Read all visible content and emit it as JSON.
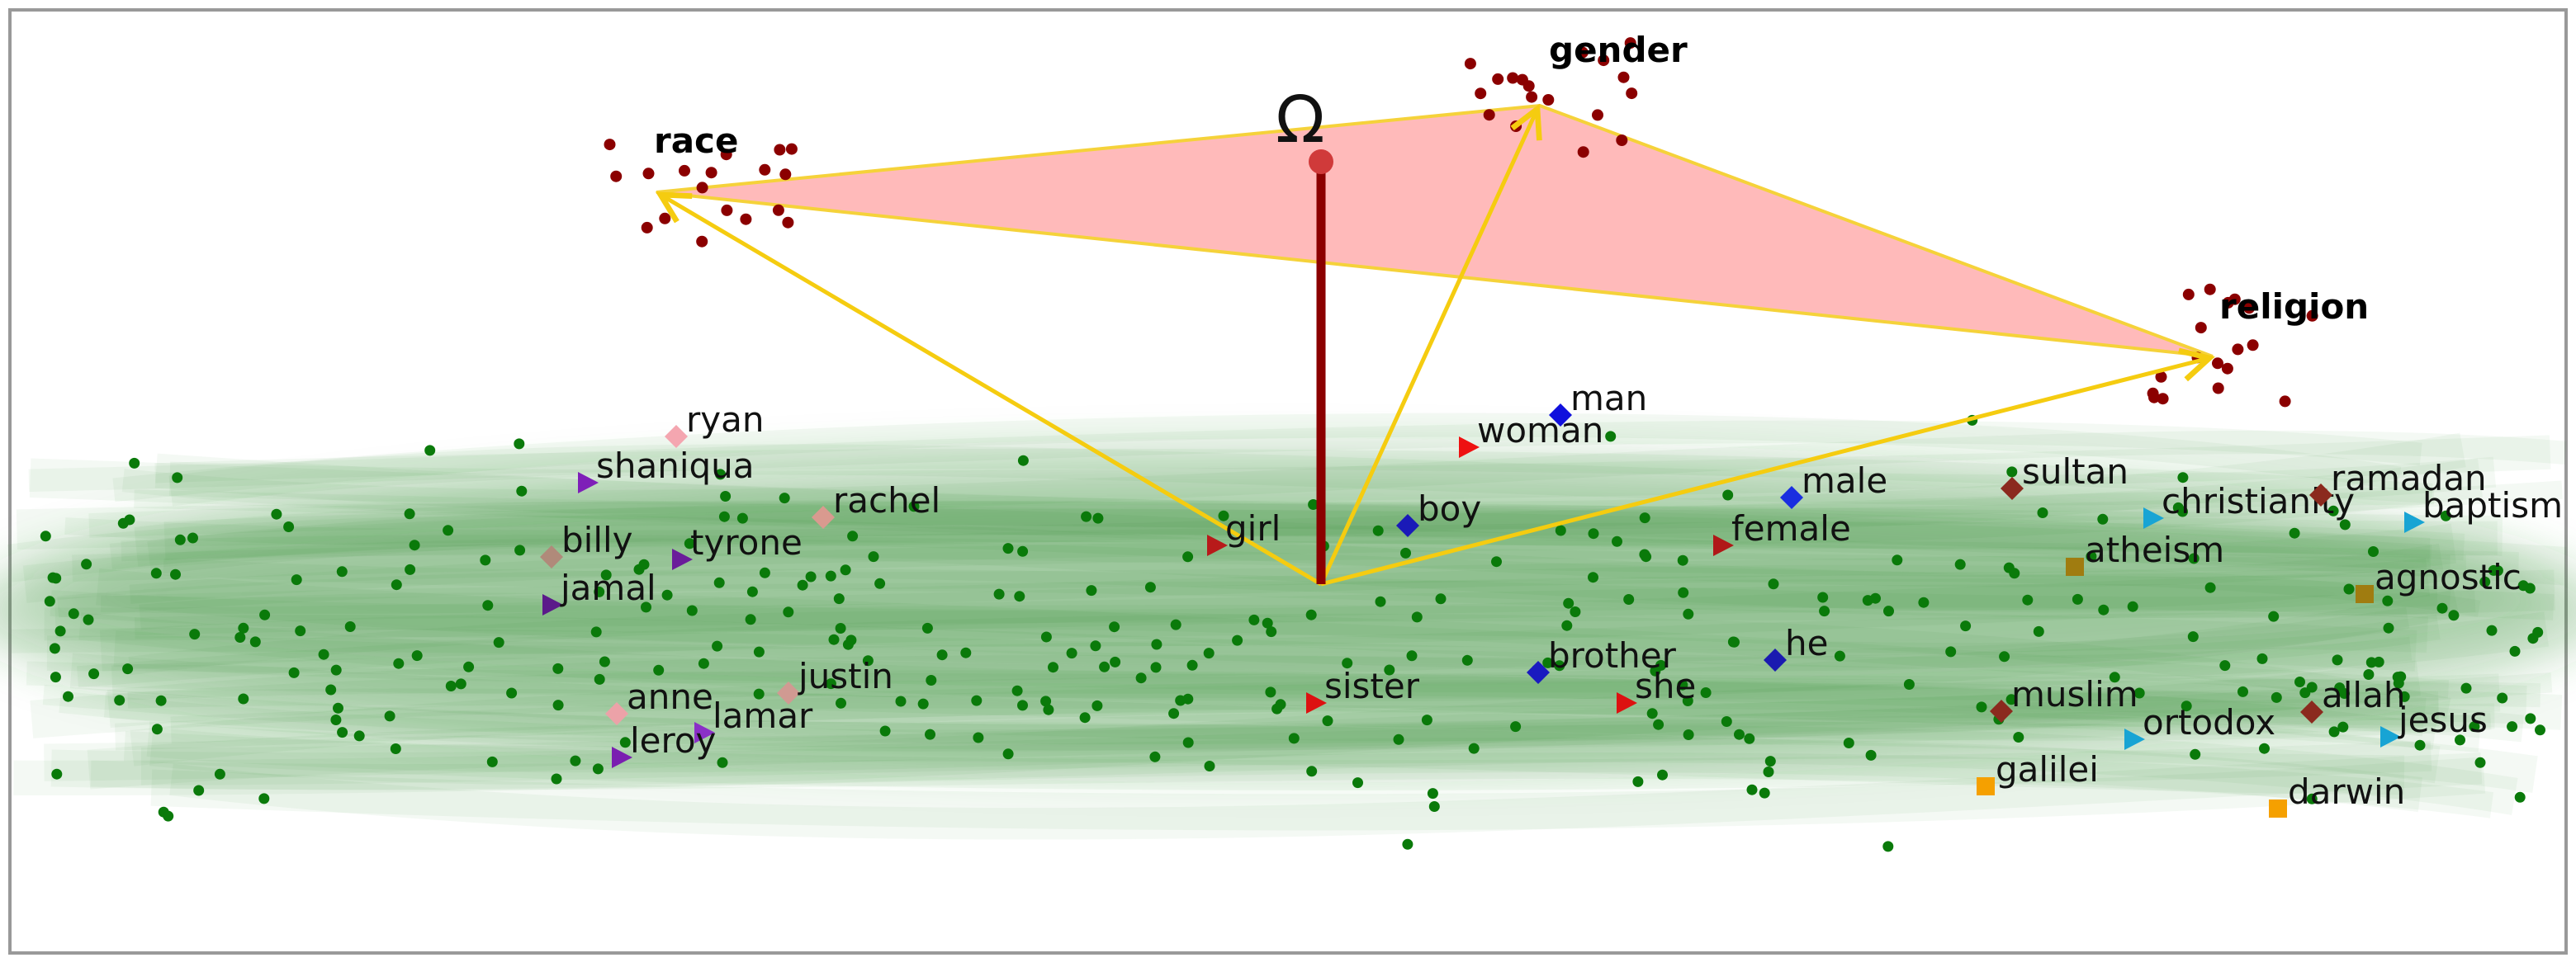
{
  "diagram": {
    "omega_label": "Ω",
    "axes": [
      {
        "id": "race",
        "label": "race"
      },
      {
        "id": "gender",
        "label": "gender"
      },
      {
        "id": "religion",
        "label": "religion"
      }
    ],
    "words": [
      {
        "id": "ryan",
        "label": "ryan",
        "marker": "diamond",
        "color": "#f4a6b0"
      },
      {
        "id": "shaniqua",
        "label": "shaniqua",
        "marker": "triangle",
        "color": "#7e1fb8"
      },
      {
        "id": "rachel",
        "label": "rachel",
        "marker": "diamond",
        "color": "#d99a8f"
      },
      {
        "id": "billy",
        "label": "billy",
        "marker": "diamond",
        "color": "#b08a7a"
      },
      {
        "id": "tyrone",
        "label": "tyrone",
        "marker": "triangle",
        "color": "#6a1c9a"
      },
      {
        "id": "jamal",
        "label": "jamal",
        "marker": "triangle",
        "color": "#5b1a8a"
      },
      {
        "id": "justin",
        "label": "justin",
        "marker": "diamond",
        "color": "#d09a92"
      },
      {
        "id": "anne",
        "label": "anne",
        "marker": "diamond",
        "color": "#eca2a8"
      },
      {
        "id": "lamar",
        "label": "lamar",
        "marker": "triangle",
        "color": "#8a2fc7"
      },
      {
        "id": "leroy",
        "label": "leroy",
        "marker": "triangle",
        "color": "#7a1fb0"
      },
      {
        "id": "girl",
        "label": "girl",
        "marker": "triangle",
        "color": "#b81a1a"
      },
      {
        "id": "woman",
        "label": "woman",
        "marker": "triangle",
        "color": "#ee1111"
      },
      {
        "id": "man",
        "label": "man",
        "marker": "diamond",
        "color": "#1010dd"
      },
      {
        "id": "boy",
        "label": "boy",
        "marker": "diamond",
        "color": "#1a1ab8"
      },
      {
        "id": "male",
        "label": "male",
        "marker": "diamond",
        "color": "#1a2ee0"
      },
      {
        "id": "female",
        "label": "female",
        "marker": "triangle",
        "color": "#b01818"
      },
      {
        "id": "brother",
        "label": "brother",
        "marker": "diamond",
        "color": "#1a1ac0"
      },
      {
        "id": "he",
        "label": "he",
        "marker": "diamond",
        "color": "#1a1ab0"
      },
      {
        "id": "sister",
        "label": "sister",
        "marker": "triangle",
        "color": "#dd1111"
      },
      {
        "id": "she",
        "label": "she",
        "marker": "triangle",
        "color": "#dd1111"
      },
      {
        "id": "sultan",
        "label": "sultan",
        "marker": "diamond",
        "color": "#8b2a1e"
      },
      {
        "id": "christianity",
        "label": "christianity",
        "marker": "triangle",
        "color": "#18a4d4"
      },
      {
        "id": "ramadan",
        "label": "ramadan",
        "marker": "diamond",
        "color": "#8b2a1e"
      },
      {
        "id": "baptism",
        "label": "baptism",
        "marker": "triangle",
        "color": "#18a4d4"
      },
      {
        "id": "atheism",
        "label": "atheism",
        "marker": "square",
        "color": "#a07c10"
      },
      {
        "id": "agnostic",
        "label": "agnostic",
        "marker": "square",
        "color": "#a07c10"
      },
      {
        "id": "muslim",
        "label": "muslim",
        "marker": "diamond",
        "color": "#8b2a1e"
      },
      {
        "id": "allah",
        "label": "allah",
        "marker": "diamond",
        "color": "#8b2a1e"
      },
      {
        "id": "ortodox",
        "label": "ortodox",
        "marker": "triangle",
        "color": "#18a4d4"
      },
      {
        "id": "jesus",
        "label": "jesus",
        "marker": "triangle",
        "color": "#18a4d4"
      },
      {
        "id": "galilei",
        "label": "galilei",
        "marker": "square",
        "color": "#f5a000"
      },
      {
        "id": "darwin",
        "label": "darwin",
        "marker": "square",
        "color": "#f5a000"
      }
    ],
    "colors": {
      "triangle_fill": "#ff8f8f",
      "triangle_edge": "#f5d23a",
      "arrow": "#f5cc10",
      "omega_stick": "#8b0000",
      "omega_dot": "#d03a3a",
      "cluster_points": "#8b0000",
      "background_points": "#0a7a0a",
      "band": "#2f8a2f",
      "frame": "#999999"
    }
  }
}
